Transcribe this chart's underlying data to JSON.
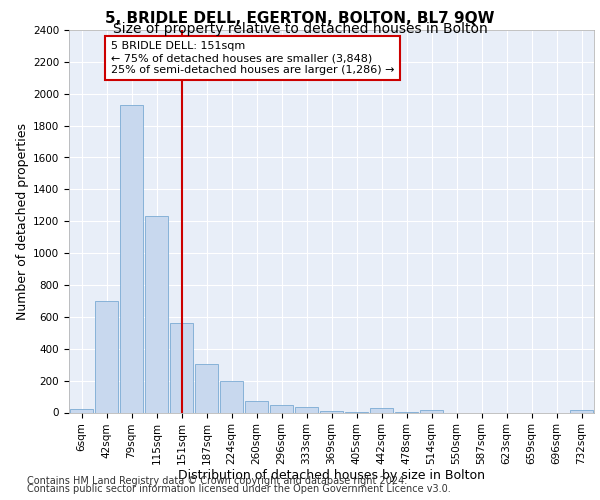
{
  "title": "5, BRIDLE DELL, EGERTON, BOLTON, BL7 9QW",
  "subtitle": "Size of property relative to detached houses in Bolton",
  "xlabel": "Distribution of detached houses by size in Bolton",
  "ylabel": "Number of detached properties",
  "categories": [
    "6sqm",
    "42sqm",
    "79sqm",
    "115sqm",
    "151sqm",
    "187sqm",
    "224sqm",
    "260sqm",
    "296sqm",
    "333sqm",
    "369sqm",
    "405sqm",
    "442sqm",
    "478sqm",
    "514sqm",
    "550sqm",
    "587sqm",
    "623sqm",
    "659sqm",
    "696sqm",
    "732sqm"
  ],
  "values": [
    20,
    700,
    1930,
    1230,
    560,
    305,
    200,
    75,
    45,
    35,
    10,
    5,
    30,
    5,
    15,
    0,
    0,
    0,
    0,
    0,
    15
  ],
  "bar_color": "#c8d8ee",
  "bar_edge_color": "#7aaad4",
  "vline_x_index": 4,
  "vline_color": "#cc0000",
  "annotation_text": "5 BRIDLE DELL: 151sqm\n← 75% of detached houses are smaller (3,848)\n25% of semi-detached houses are larger (1,286) →",
  "annotation_box_facecolor": "#ffffff",
  "annotation_box_edgecolor": "#cc0000",
  "ylim": [
    0,
    2400
  ],
  "yticks": [
    0,
    200,
    400,
    600,
    800,
    1000,
    1200,
    1400,
    1600,
    1800,
    2000,
    2200,
    2400
  ],
  "plot_bg_color": "#e8eef8",
  "grid_color": "#ffffff",
  "footer_line1": "Contains HM Land Registry data © Crown copyright and database right 2024.",
  "footer_line2": "Contains public sector information licensed under the Open Government Licence v3.0.",
  "title_fontsize": 11,
  "subtitle_fontsize": 10,
  "xlabel_fontsize": 9,
  "ylabel_fontsize": 9,
  "tick_fontsize": 7.5,
  "annotation_fontsize": 8,
  "footer_fontsize": 7
}
